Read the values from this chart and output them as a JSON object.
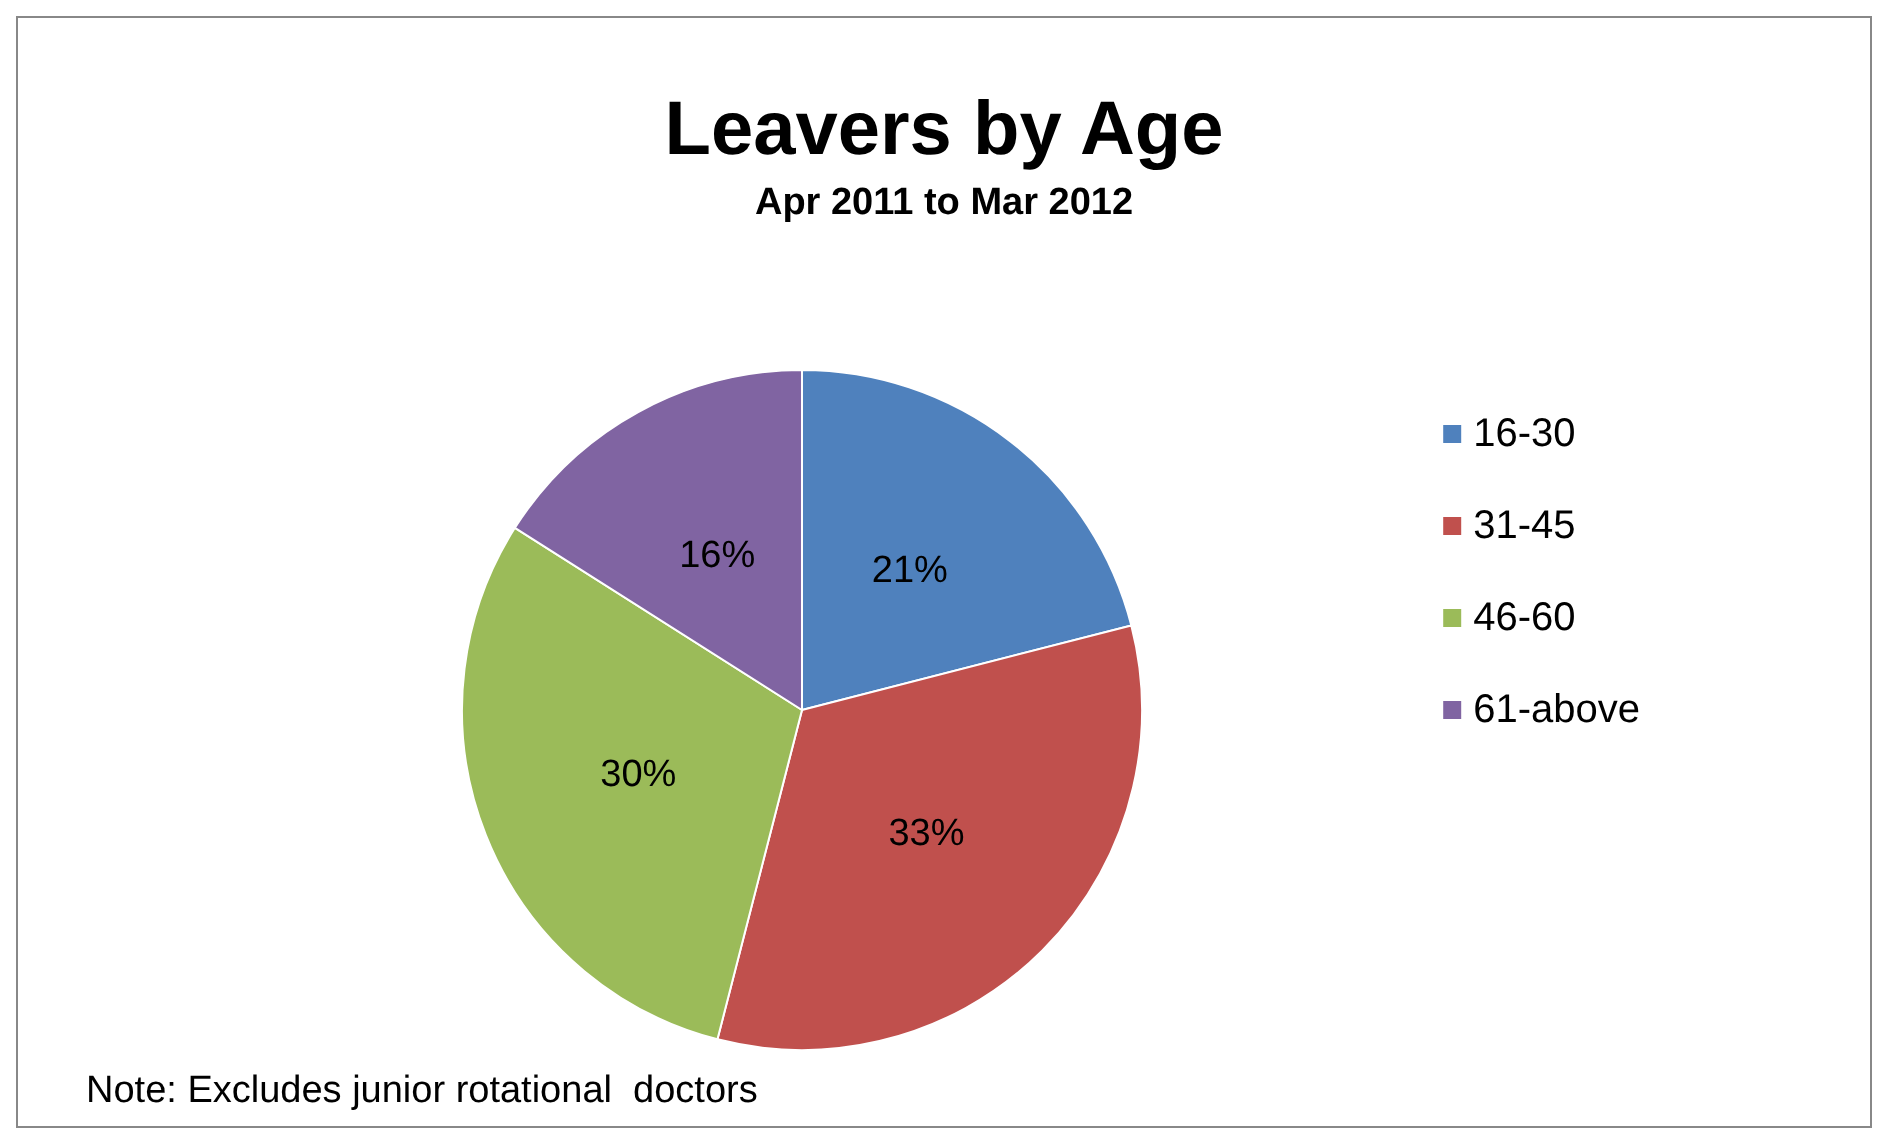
{
  "chart_data": {
    "type": "pie",
    "title": "Leavers by Age",
    "subtitle": "Apr 2011 to Mar 2012",
    "categories": [
      "16-30",
      "31-45",
      "46-60",
      "61-above"
    ],
    "values": [
      21,
      33,
      30,
      16
    ],
    "colors": [
      "#4f81bd",
      "#c0504d",
      "#9bbb59",
      "#8064a2"
    ],
    "value_labels": [
      "21%",
      "33%",
      "30%",
      "16%"
    ],
    "legend": "right",
    "annotations": [
      "Note: Excludes junior rotational  doctors"
    ]
  }
}
